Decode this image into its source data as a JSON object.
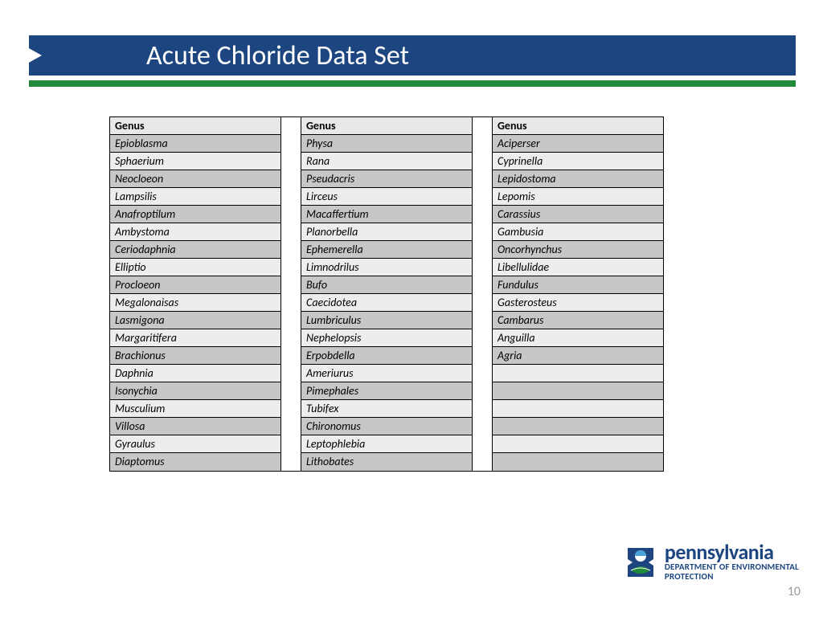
{
  "slide": {
    "title": "Acute Chloride Data Set",
    "page_number": "10"
  },
  "logo": {
    "name": "pennsylvania",
    "sub": "DEPARTMENT OF ENVIRONMENTAL\nPROTECTION",
    "colors": {
      "brand_blue": "#1d4681",
      "leaf_green": "#228b3a"
    }
  },
  "table": {
    "header": "Genus",
    "row_count": 19,
    "columns": [
      {
        "rows": [
          "Epioblasma",
          "Sphaerium",
          "Neocloeon",
          "Lampsilis",
          "Anafroptilum",
          "Ambystoma",
          "Ceriodaphnia",
          "Elliptio",
          "Procloeon",
          "Megalonaisas",
          "Lasmigona",
          "Margaritifera",
          "Brachionus",
          "Daphnia",
          "Isonychia",
          "Musculium",
          "Villosa",
          "Gyraulus",
          "Diaptomus"
        ]
      },
      {
        "rows": [
          "Physa",
          "Rana",
          "Pseudacris",
          "Lirceus",
          "Macaffertium",
          "Planorbella",
          "Ephemerella",
          "Limnodrilus",
          "Bufo",
          "Caecidotea",
          "Lumbriculus",
          "Nephelopsis",
          "Erpobdella",
          "Ameriurus",
          "Pimephales",
          "Tubifex",
          "Chironomus",
          "Leptophlebia",
          "Lithobates"
        ]
      },
      {
        "rows": [
          "Aciperser",
          "Cyprinella",
          "Lepidostoma",
          "Lepomis",
          "Carassius",
          "Gambusia",
          "Oncorhynchus",
          "Libellulidae",
          "Fundulus",
          "Gasterosteus",
          "Cambarus",
          "Anguilla",
          "Agria",
          "",
          "",
          "",
          "",
          "",
          ""
        ]
      }
    ],
    "colors": {
      "cell_light": "#ededed",
      "cell_dark": "#c7c7c7",
      "border": "#000000"
    }
  },
  "banner": {
    "bg": "#1d4681",
    "green_bar": "#228b3a",
    "title_color": "#ffffff",
    "title_fontsize": 34
  }
}
